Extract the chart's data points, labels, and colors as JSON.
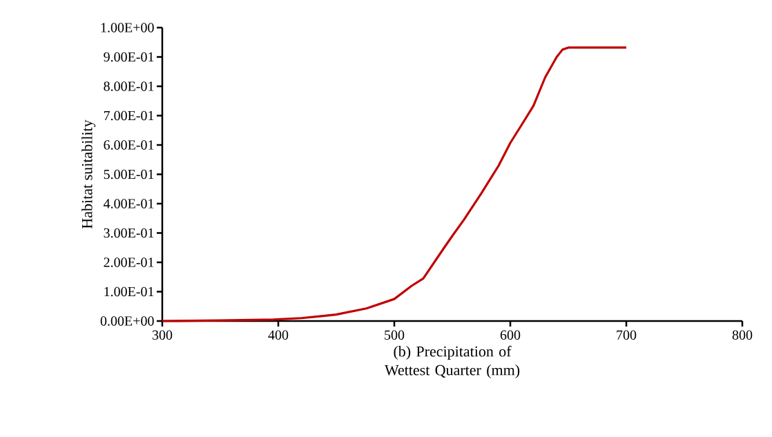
{
  "chart_data": {
    "type": "line",
    "xlabel": "(b) Precipitation of Wettest Quarter (mm)",
    "ylabel": "Habitat suitability",
    "x": [
      300,
      350,
      396,
      420,
      436,
      450,
      476,
      500,
      515,
      525,
      543,
      550,
      560,
      575,
      590,
      600,
      610,
      620,
      630,
      640,
      645,
      650,
      700
    ],
    "series": [
      {
        "color": "#c00000",
        "values": [
          0,
          0.002,
          0.005,
          0.01,
          0.016,
          0.022,
          0.043,
          0.075,
          0.12,
          0.145,
          0.25,
          0.29,
          0.345,
          0.435,
          0.53,
          0.607,
          0.67,
          0.734,
          0.83,
          0.9,
          0.925,
          0.932,
          0.932
        ]
      }
    ],
    "xlim": [
      300,
      800
    ],
    "xticks": [
      300,
      400,
      500,
      600,
      700,
      800
    ],
    "ylim": [
      0,
      1
    ],
    "yticks": [
      {
        "value": 0,
        "label": "0.00E+00"
      },
      {
        "value": 0.1,
        "label": "1.00E-01"
      },
      {
        "value": 0.2,
        "label": "2.00E-01"
      },
      {
        "value": 0.3,
        "label": "3.00E-01"
      },
      {
        "value": 0.4,
        "label": "4.00E-01"
      },
      {
        "value": 0.5,
        "label": "5.00E-01"
      },
      {
        "value": 0.6,
        "label": "6.00E-01"
      },
      {
        "value": 0.7,
        "label": "7.00E-01"
      },
      {
        "value": 0.8,
        "label": "8.00E-01"
      },
      {
        "value": 0.9,
        "label": "9.00E-01"
      },
      {
        "value": 1,
        "label": "1.00E+00"
      }
    ],
    "marker": "none",
    "line_style": "solid"
  }
}
